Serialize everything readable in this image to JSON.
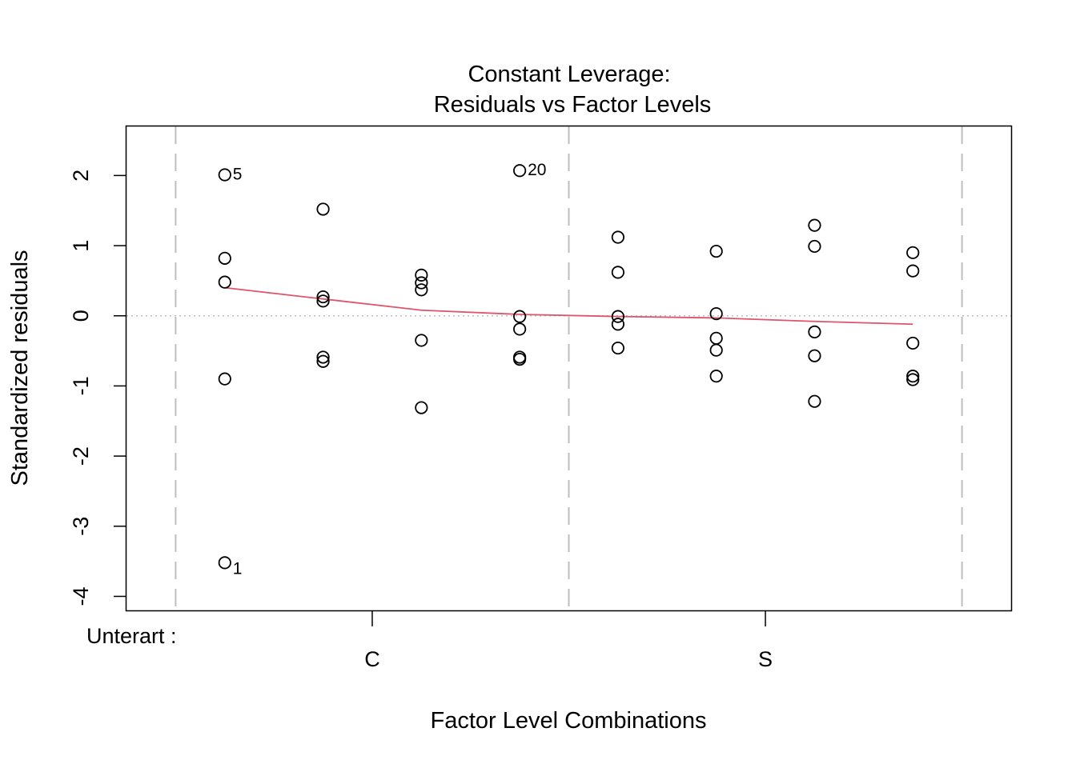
{
  "chart_data": {
    "type": "scatter",
    "title": "Constant Leverage:",
    "subtitle": "Residuals vs Factor Levels",
    "xlabel": "Factor Level Combinations",
    "ylabel": "Standardized residuals",
    "ylim": [
      -4.2,
      2.7
    ],
    "yticks": [
      "-4",
      "-3",
      "-2",
      "-1",
      "0",
      "1",
      "2"
    ],
    "factor_name": "Unterart :",
    "factor_levels": [
      {
        "label": "C",
        "x_center": 2.5
      },
      {
        "label": "S",
        "x_center": 6.5
      }
    ],
    "xlim": [
      0.0,
      9.0
    ],
    "group_separators": [
      0.5,
      4.5,
      8.5
    ],
    "reference_line_y": 0,
    "colors": {
      "points": "#000000",
      "smooth": "#DF536B",
      "separator": "#BEBEBE",
      "reference": "#BEBEBE"
    },
    "points": [
      {
        "x": 1,
        "y": 2.01,
        "label": "5"
      },
      {
        "x": 1,
        "y": 0.82
      },
      {
        "x": 1,
        "y": 0.48
      },
      {
        "x": 1,
        "y": -0.9
      },
      {
        "x": 1,
        "y": -3.52,
        "label": "1"
      },
      {
        "x": 2,
        "y": 1.52
      },
      {
        "x": 2,
        "y": 0.27
      },
      {
        "x": 2,
        "y": 0.21
      },
      {
        "x": 2,
        "y": -0.59
      },
      {
        "x": 2,
        "y": -0.65
      },
      {
        "x": 3,
        "y": 0.58
      },
      {
        "x": 3,
        "y": 0.47
      },
      {
        "x": 3,
        "y": 0.37
      },
      {
        "x": 3,
        "y": -0.35
      },
      {
        "x": 3,
        "y": -1.31
      },
      {
        "x": 4,
        "y": 2.07,
        "label": "20"
      },
      {
        "x": 4,
        "y": -0.01
      },
      {
        "x": 4,
        "y": -0.19
      },
      {
        "x": 4,
        "y": -0.59
      },
      {
        "x": 4,
        "y": -0.62
      },
      {
        "x": 5,
        "y": 1.12
      },
      {
        "x": 5,
        "y": 0.62
      },
      {
        "x": 5,
        "y": -0.01
      },
      {
        "x": 5,
        "y": -0.12
      },
      {
        "x": 5,
        "y": -0.46
      },
      {
        "x": 6,
        "y": 0.92
      },
      {
        "x": 6,
        "y": 0.03
      },
      {
        "x": 6,
        "y": -0.32
      },
      {
        "x": 6,
        "y": -0.49
      },
      {
        "x": 6,
        "y": -0.86
      },
      {
        "x": 7,
        "y": 1.29
      },
      {
        "x": 7,
        "y": 0.99
      },
      {
        "x": 7,
        "y": -0.23
      },
      {
        "x": 7,
        "y": -0.57
      },
      {
        "x": 7,
        "y": -1.22
      },
      {
        "x": 8,
        "y": 0.9
      },
      {
        "x": 8,
        "y": 0.64
      },
      {
        "x": 8,
        "y": -0.39
      },
      {
        "x": 8,
        "y": -0.86
      },
      {
        "x": 8,
        "y": -0.91
      }
    ],
    "smooth_line": [
      {
        "x": 1,
        "y": 0.4
      },
      {
        "x": 2,
        "y": 0.24
      },
      {
        "x": 3,
        "y": 0.08
      },
      {
        "x": 4,
        "y": 0.02
      },
      {
        "x": 5,
        "y": -0.01
      },
      {
        "x": 6,
        "y": -0.03
      },
      {
        "x": 7,
        "y": -0.08
      },
      {
        "x": 8,
        "y": -0.12
      }
    ]
  }
}
